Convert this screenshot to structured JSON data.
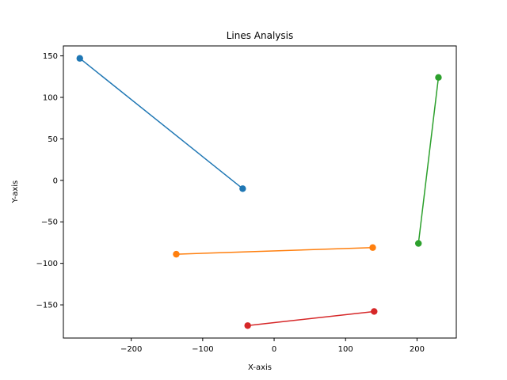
{
  "chart_data": {
    "type": "line",
    "title": "Lines Analysis",
    "xlabel": "X-axis",
    "ylabel": "Y-axis",
    "xlim": [
      -295,
      255
    ],
    "ylim": [
      -190,
      162
    ],
    "xticks": [
      -200,
      -100,
      0,
      100,
      200
    ],
    "yticks": [
      -150,
      -100,
      -50,
      0,
      50,
      100,
      150
    ],
    "xtick_labels": [
      "−200",
      "−100",
      "0",
      "100",
      "200"
    ],
    "ytick_labels": [
      "−150",
      "−100",
      "−50",
      "0",
      "50",
      "100",
      "150"
    ],
    "grid": false,
    "legend": false,
    "series": [
      {
        "color": "#1f77b4",
        "points": [
          [
            -272,
            147
          ],
          [
            -44,
            -10
          ]
        ]
      },
      {
        "color": "#ff7f0e",
        "points": [
          [
            -137,
            -89
          ],
          [
            138,
            -81
          ]
        ]
      },
      {
        "color": "#2ca02c",
        "points": [
          [
            230,
            124
          ],
          [
            202,
            -76
          ]
        ]
      },
      {
        "color": "#d62728",
        "points": [
          [
            -37,
            -175
          ],
          [
            140,
            -158
          ]
        ]
      }
    ]
  }
}
